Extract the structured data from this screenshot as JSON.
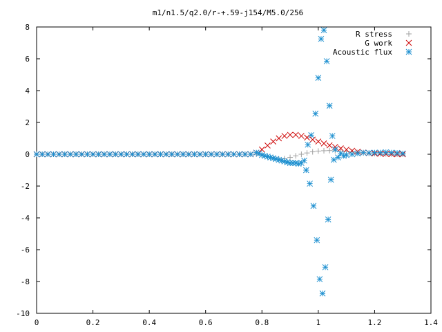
{
  "chart_data": {
    "type": "scatter",
    "title": "m1/n1.5/q2.0/r-+.59-j154/M5.0/256",
    "xlabel": "",
    "ylabel": "",
    "xlim": [
      0,
      1.4
    ],
    "ylim": [
      -10,
      8
    ],
    "xticks": [
      "0",
      "0.2",
      "0.4",
      "0.6",
      "0.8",
      "1",
      "1.2",
      "1.4"
    ],
    "yticks": [
      "-10",
      "-8",
      "-6",
      "-4",
      "-2",
      "0",
      "2",
      "4",
      "6",
      "8"
    ],
    "grid": false,
    "legend_position": "top-right",
    "series": [
      {
        "name": "R stress",
        "marker": "plus",
        "color": "#a0a0a0",
        "x": [
          0.8,
          0.82,
          0.84,
          0.86,
          0.88,
          0.9,
          0.92,
          0.94,
          0.96,
          0.98,
          1.0,
          1.02,
          1.04,
          1.06,
          1.08,
          1.1,
          1.12,
          1.14,
          1.16,
          1.18,
          1.2,
          1.22,
          1.24,
          1.26,
          1.28,
          1.3
        ],
        "y": [
          -0.05,
          -0.15,
          -0.25,
          -0.3,
          -0.28,
          -0.2,
          -0.1,
          0.0,
          0.08,
          0.15,
          0.2,
          0.22,
          0.23,
          0.22,
          0.2,
          0.17,
          0.14,
          0.11,
          0.08,
          0.06,
          0.04,
          0.03,
          0.02,
          0.01,
          0.0,
          0.0
        ]
      },
      {
        "name": "G work",
        "marker": "cross",
        "color": "#cc0000",
        "x": [
          0.78,
          0.8,
          0.82,
          0.84,
          0.86,
          0.88,
          0.9,
          0.92,
          0.94,
          0.96,
          0.98,
          1.0,
          1.02,
          1.04,
          1.06,
          1.08,
          1.1,
          1.12,
          1.14,
          1.16,
          1.18,
          1.2,
          1.22,
          1.24,
          1.26,
          1.28,
          1.3
        ],
        "y": [
          0.1,
          0.3,
          0.55,
          0.8,
          1.0,
          1.15,
          1.22,
          1.22,
          1.15,
          1.05,
          0.92,
          0.8,
          0.68,
          0.56,
          0.46,
          0.37,
          0.29,
          0.22,
          0.16,
          0.11,
          0.07,
          0.05,
          0.03,
          0.02,
          0.01,
          0.0,
          0.0
        ]
      },
      {
        "name": "Acoustic flux",
        "marker": "star",
        "color": "#1e90d0",
        "x": [
          0.78,
          0.79,
          0.8,
          0.81,
          0.82,
          0.83,
          0.84,
          0.85,
          0.86,
          0.87,
          0.88,
          0.89,
          0.9,
          0.91,
          0.92,
          0.93,
          0.94,
          0.95,
          0.957,
          0.963,
          0.97,
          0.975,
          0.983,
          0.99,
          0.995,
          1.0,
          1.005,
          1.01,
          1.015,
          1.02,
          1.025,
          1.03,
          1.035,
          1.04,
          1.045,
          1.05,
          1.055,
          1.06,
          1.07,
          1.08,
          1.09,
          1.1,
          1.12,
          1.14,
          1.16,
          1.18,
          1.2,
          1.22,
          1.24,
          1.26,
          1.28,
          1.3
        ],
        "y": [
          0.1,
          0.05,
          -0.05,
          -0.1,
          -0.15,
          -0.2,
          -0.25,
          -0.3,
          -0.35,
          -0.4,
          -0.45,
          -0.5,
          -0.55,
          -0.55,
          -0.55,
          -0.6,
          -0.55,
          -0.4,
          -1.0,
          0.6,
          -1.85,
          1.2,
          -3.25,
          2.55,
          -5.4,
          4.8,
          -7.85,
          7.25,
          -8.75,
          7.8,
          -7.1,
          5.85,
          -4.1,
          3.05,
          -1.6,
          1.15,
          -0.35,
          0.3,
          -0.2,
          0.05,
          -0.1,
          -0.05,
          0.0,
          0.05,
          0.1,
          0.08,
          0.1,
          0.1,
          0.12,
          0.1,
          0.08,
          0.05
        ]
      }
    ]
  }
}
